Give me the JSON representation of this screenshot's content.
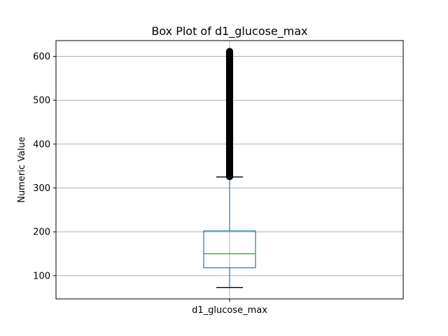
{
  "chart_data": {
    "type": "box",
    "title": "Box Plot of d1_glucose_max",
    "xlabel": "",
    "ylabel": "Numeric Value",
    "categories": [
      "d1_glucose_max"
    ],
    "ylim": [
      47,
      636
    ],
    "yticks": [
      100,
      200,
      300,
      400,
      500,
      600
    ],
    "grid": true,
    "boxes": [
      {
        "name": "d1_glucose_max",
        "whisker_low": 73,
        "q1": 118,
        "median": 150,
        "q3": 202,
        "whisker_high": 325,
        "outliers_range": [
          326,
          611
        ]
      }
    ],
    "colors": {
      "box": "#1f77b4",
      "median": "#2ca02c",
      "whisker_cap": "#000000",
      "outlier": "#000000",
      "grid": "#b0b0b0"
    }
  }
}
